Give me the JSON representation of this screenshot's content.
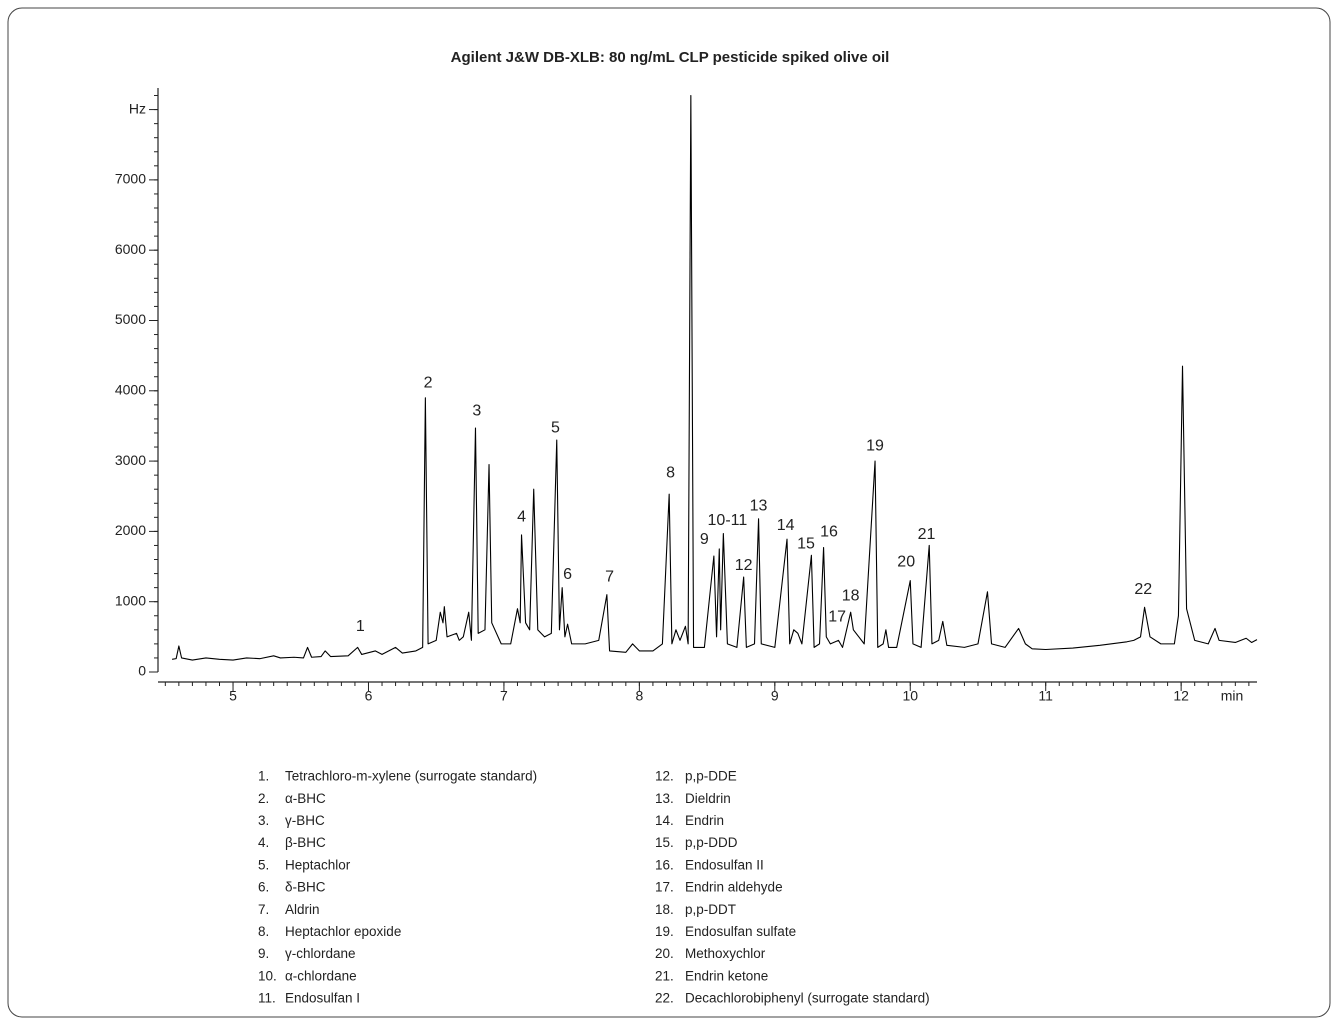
{
  "chart_data": {
    "type": "line",
    "title": "Agilent J&W DB-XLB: 80 ng/mL CLP pesticide spiked olive oil",
    "xlabel": "min",
    "color": "#000000",
    "xlim": [
      4.446,
      12.56
    ],
    "xticks": [
      5,
      6,
      7,
      8,
      9,
      10,
      11,
      12
    ],
    "ylim": [
      0,
      8250
    ],
    "yticks": [
      0,
      1000,
      2000,
      3000,
      4000,
      5000,
      6000,
      7000,
      {
        "value": 8000,
        "label": "Hz"
      }
    ],
    "minor_xtick_step": 0.1,
    "minor_ytick_step": 200,
    "x": [
      4.55,
      4.58,
      4.6,
      4.62,
      4.7,
      4.8,
      4.9,
      5.0,
      5.1,
      5.2,
      5.3,
      5.35,
      5.45,
      5.52,
      5.55,
      5.58,
      5.65,
      5.68,
      5.72,
      5.85,
      5.92,
      5.95,
      6.05,
      6.1,
      6.2,
      6.25,
      6.35,
      6.4,
      6.42,
      6.44,
      6.5,
      6.53,
      6.55,
      6.56,
      6.58,
      6.65,
      6.67,
      6.7,
      6.74,
      6.76,
      6.79,
      6.81,
      6.86,
      6.89,
      6.91,
      6.98,
      7.05,
      7.1,
      7.12,
      7.13,
      7.16,
      7.19,
      7.22,
      7.25,
      7.3,
      7.35,
      7.39,
      7.41,
      7.43,
      7.45,
      7.47,
      7.5,
      7.6,
      7.7,
      7.76,
      7.78,
      7.9,
      7.95,
      8.0,
      8.1,
      8.17,
      8.22,
      8.24,
      8.27,
      8.3,
      8.34,
      8.36,
      8.38,
      8.4,
      8.48,
      8.55,
      8.57,
      8.59,
      8.6,
      8.62,
      8.65,
      8.72,
      8.77,
      8.79,
      8.85,
      8.88,
      8.9,
      9.0,
      9.09,
      9.11,
      9.14,
      9.17,
      9.2,
      9.27,
      9.29,
      9.33,
      9.36,
      9.38,
      9.41,
      9.47,
      9.5,
      9.56,
      9.58,
      9.62,
      9.66,
      9.74,
      9.76,
      9.8,
      9.82,
      9.84,
      9.9,
      10.0,
      10.02,
      10.08,
      10.14,
      10.16,
      10.21,
      10.24,
      10.27,
      10.4,
      10.5,
      10.57,
      10.6,
      10.7,
      10.8,
      10.85,
      10.9,
      11.0,
      11.2,
      11.4,
      11.6,
      11.65,
      11.7,
      11.73,
      11.77,
      11.85,
      11.95,
      11.98,
      12.01,
      12.04,
      12.1,
      12.2,
      12.25,
      12.28,
      12.4,
      12.48,
      12.52,
      12.56
    ],
    "values": [
      180,
      190,
      370,
      200,
      170,
      200,
      180,
      170,
      200,
      190,
      230,
      200,
      210,
      200,
      350,
      210,
      220,
      300,
      220,
      230,
      350,
      250,
      300,
      250,
      350,
      270,
      300,
      350,
      3900,
      400,
      450,
      850,
      700,
      930,
      500,
      550,
      450,
      500,
      850,
      450,
      3470,
      550,
      600,
      2950,
      700,
      400,
      400,
      900,
      700,
      1950,
      700,
      600,
      2600,
      600,
      500,
      550,
      3300,
      600,
      1200,
      500,
      680,
      400,
      400,
      450,
      1100,
      300,
      280,
      400,
      300,
      300,
      400,
      2530,
      400,
      600,
      450,
      650,
      400,
      8200,
      350,
      350,
      1650,
      500,
      1750,
      600,
      1970,
      400,
      350,
      1350,
      350,
      400,
      2180,
      400,
      350,
      1890,
      400,
      600,
      550,
      400,
      1660,
      350,
      400,
      1770,
      500,
      400,
      450,
      350,
      850,
      600,
      500,
      400,
      3000,
      350,
      400,
      600,
      350,
      350,
      1300,
      400,
      350,
      1800,
      400,
      450,
      720,
      380,
      350,
      400,
      1140,
      400,
      350,
      620,
      400,
      330,
      320,
      340,
      380,
      430,
      450,
      500,
      920,
      500,
      400,
      400,
      800,
      4350,
      900,
      450,
      400,
      620,
      450,
      420,
      480,
      420,
      460
    ],
    "annotations": [
      {
        "text": "1",
        "x": 5.94,
        "y": 640
      },
      {
        "text": "2",
        "x": 6.44,
        "y": 4110
      },
      {
        "text": "3",
        "x": 6.8,
        "y": 3710
      },
      {
        "text": "4",
        "x": 7.13,
        "y": 2200
      },
      {
        "text": "5",
        "x": 7.38,
        "y": 3470
      },
      {
        "text": "6",
        "x": 7.47,
        "y": 1380
      },
      {
        "text": "7",
        "x": 7.78,
        "y": 1350
      },
      {
        "text": "8",
        "x": 8.23,
        "y": 2830
      },
      {
        "text": "9",
        "x": 8.48,
        "y": 1880
      },
      {
        "text": "10-11",
        "x": 8.65,
        "y": 2150
      },
      {
        "text": "12",
        "x": 8.77,
        "y": 1510
      },
      {
        "text": "13",
        "x": 8.88,
        "y": 2360
      },
      {
        "text": "14",
        "x": 9.08,
        "y": 2080
      },
      {
        "text": "15",
        "x": 9.23,
        "y": 1820
      },
      {
        "text": "16",
        "x": 9.4,
        "y": 1990
      },
      {
        "text": "17",
        "x": 9.46,
        "y": 780
      },
      {
        "text": "18",
        "x": 9.56,
        "y": 1080
      },
      {
        "text": "19",
        "x": 9.74,
        "y": 3210
      },
      {
        "text": "20",
        "x": 9.97,
        "y": 1560
      },
      {
        "text": "21",
        "x": 10.12,
        "y": 1950
      },
      {
        "text": "22",
        "x": 11.72,
        "y": 1170
      }
    ],
    "legend": [
      {
        "number": "1.",
        "name": "Tetrachloro-m-xylene (surrogate standard)"
      },
      {
        "number": "2.",
        "name": "α-BHC"
      },
      {
        "number": "3.",
        "name": "γ-BHC"
      },
      {
        "number": "4.",
        "name": "β-BHC"
      },
      {
        "number": "5.",
        "name": "Heptachlor"
      },
      {
        "number": "6.",
        "name": "δ-BHC"
      },
      {
        "number": "7.",
        "name": "Aldrin"
      },
      {
        "number": "8.",
        "name": "Heptachlor epoxide"
      },
      {
        "number": "9.",
        "name": "γ-chlordane"
      },
      {
        "number": "10.",
        "name": "α-chlordane"
      },
      {
        "number": "11.",
        "name": "Endosulfan I"
      },
      {
        "number": "12.",
        "name": "p,p-DDE"
      },
      {
        "number": "13.",
        "name": "Dieldrin"
      },
      {
        "number": "14.",
        "name": "Endrin"
      },
      {
        "number": "15.",
        "name": "p,p-DDD"
      },
      {
        "number": "16.",
        "name": "Endosulfan II"
      },
      {
        "number": "17.",
        "name": "Endrin aldehyde"
      },
      {
        "number": "18.",
        "name": "p,p-DDT"
      },
      {
        "number": "19.",
        "name": "Endosulfan sulfate"
      },
      {
        "number": "20.",
        "name": "Methoxychlor"
      },
      {
        "number": "21.",
        "name": "Endrin ketone"
      },
      {
        "number": "22.",
        "name": "Decachlorobiphenyl (surrogate standard)"
      }
    ]
  }
}
